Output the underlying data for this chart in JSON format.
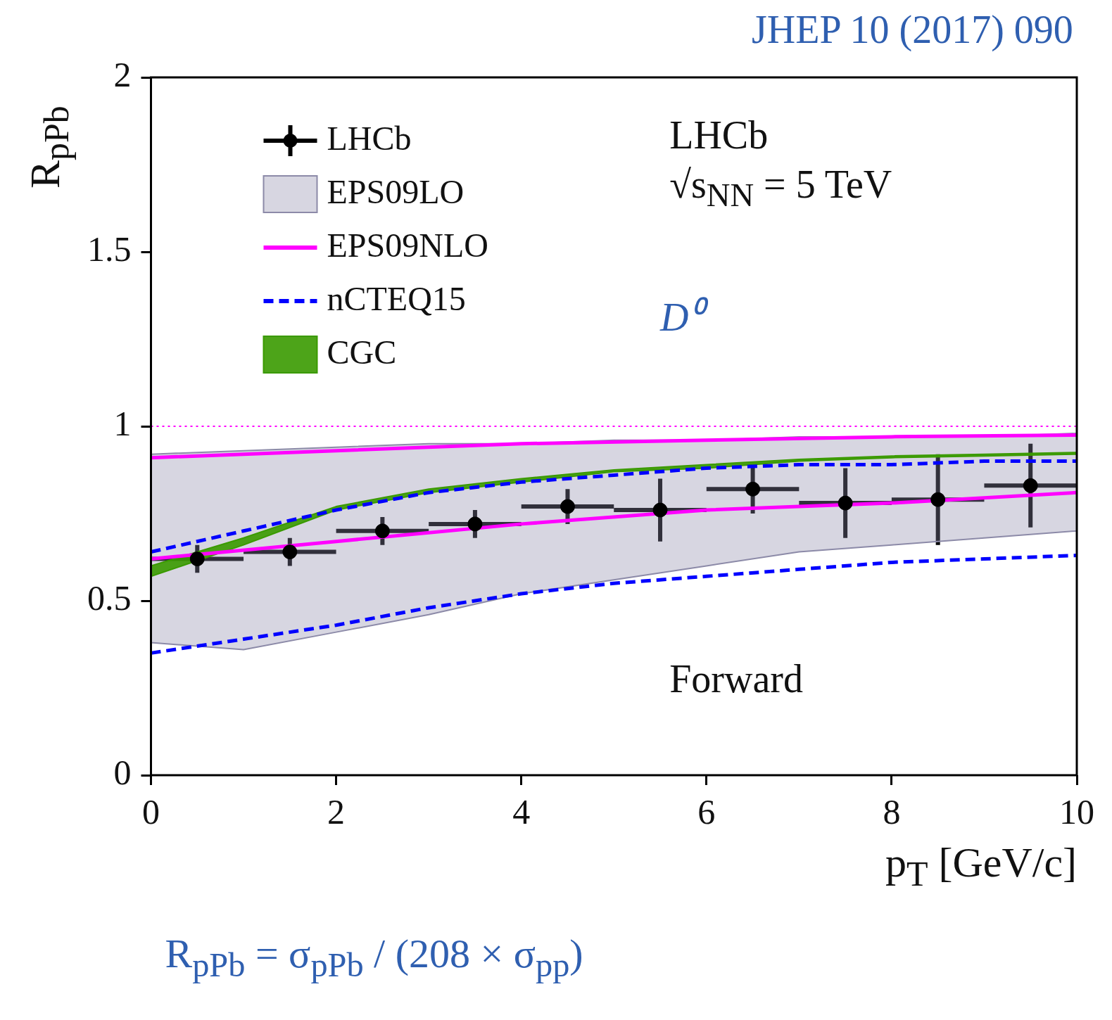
{
  "chart_data": {
    "type": "scatter",
    "xlabel": "p$_{T}$ [GeV/c]",
    "ylabel": "R$_{pPb}$",
    "xlim": [
      0,
      10
    ],
    "xticks": [
      0,
      2,
      4,
      6,
      8,
      10
    ],
    "ylim": [
      0,
      2
    ],
    "yticks": [
      0,
      0.5,
      1,
      1.5,
      2
    ],
    "grid": false,
    "legend": "top left",
    "series": [
      {
        "name": "LHCb",
        "color": "#000000",
        "marker": "circle",
        "x": [
          0.5,
          1.5,
          2.5,
          3.5,
          4.5,
          5.5,
          6.5,
          7.5,
          8.5,
          9.5
        ],
        "values": [
          0.62,
          0.64,
          0.7,
          0.72,
          0.77,
          0.76,
          0.82,
          0.78,
          0.79,
          0.83
        ],
        "errors": [
          0.04,
          0.04,
          0.04,
          0.04,
          0.05,
          0.09,
          0.07,
          0.1,
          0.13,
          0.12
        ],
        "xerrors": [
          0.5,
          0.5,
          0.5,
          0.5,
          0.5,
          0.5,
          0.5,
          0.5,
          0.5,
          0.5
        ]
      },
      {
        "name": "EPS09LO",
        "type": "area",
        "color": "#8c8aa8",
        "x": [
          0,
          1,
          2,
          3,
          4,
          5,
          6,
          7,
          8,
          9,
          10
        ],
        "values": [
          null,
          null,
          null,
          null,
          null,
          null,
          null,
          null,
          null,
          null,
          null
        ],
        "lower": [
          0.38,
          0.36,
          0.41,
          0.46,
          0.52,
          0.56,
          0.6,
          0.64,
          0.66,
          0.68,
          0.7
        ],
        "upper": [
          0.92,
          0.93,
          0.94,
          0.95,
          0.95,
          0.96,
          0.96,
          0.97,
          0.97,
          0.97,
          0.98
        ]
      },
      {
        "name": "EPS09NLO",
        "type": "line",
        "color": "#ff00ff",
        "x": [
          0,
          2,
          4,
          6,
          8,
          10
        ],
        "values": [
          0.91,
          0.93,
          0.95,
          0.96,
          0.97,
          0.975
        ]
      },
      {
        "type": "line",
        "color": "#ff00ff",
        "x": [
          0,
          2,
          4,
          6,
          8,
          10
        ],
        "values": [
          0.62,
          0.67,
          0.72,
          0.76,
          0.78,
          0.81
        ]
      },
      {
        "name": "nCTEQ15",
        "type": "line",
        "line_style": "dashed",
        "color": "#0000ff",
        "x": [
          0,
          1,
          2,
          3,
          4,
          5,
          6,
          7,
          8,
          9,
          10
        ],
        "values": [
          0.64,
          0.7,
          0.76,
          0.81,
          0.84,
          0.86,
          0.88,
          0.89,
          0.89,
          0.9,
          0.9
        ]
      },
      {
        "type": "line",
        "line_style": "dashed",
        "color": "#0000ff",
        "x": [
          0,
          1,
          2,
          3,
          4,
          5,
          6,
          7,
          8,
          9,
          10
        ],
        "values": [
          0.35,
          0.39,
          0.43,
          0.48,
          0.52,
          0.55,
          0.57,
          0.59,
          0.61,
          0.62,
          0.63
        ]
      },
      {
        "name": "CGC",
        "type": "area",
        "color": "#3a9a00",
        "x": [
          0,
          1,
          2,
          3,
          4,
          5,
          6,
          7,
          8,
          9,
          10
        ],
        "values": [
          null,
          null,
          null,
          null,
          null,
          null,
          null,
          null,
          null,
          null,
          null
        ],
        "lower": [
          0.57,
          0.66,
          0.76,
          0.81,
          0.84,
          0.87,
          0.88,
          0.9,
          0.91,
          0.915,
          0.92
        ],
        "upper": [
          0.6,
          0.68,
          0.77,
          0.82,
          0.85,
          0.875,
          0.89,
          0.905,
          0.915,
          0.92,
          0.925
        ]
      }
    ],
    "ref_lines": [
      {
        "axis": "y",
        "value": 1,
        "color": "#ff00ff",
        "line_style": "dotted"
      }
    ],
    "annotations": [
      "JHEP 10 (2017) 090",
      "LHCb",
      "√s$_{NN}$ = 5 TeV",
      "D⁰",
      "Forward",
      "R$_{pPb}$ = σ$_{pPb}$ / (208 × σ$_{pp}$)"
    ]
  }
}
